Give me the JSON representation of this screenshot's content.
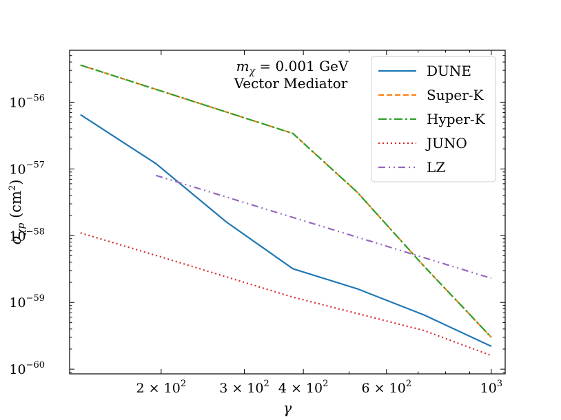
{
  "chart_data": {
    "type": "line",
    "xscale": "log",
    "yscale": "log",
    "xlabel": "γ",
    "ylabel": "σ_χp (cm²)",
    "xlim": [
      128,
      1070
    ],
    "ylim": [
      8.5e-61,
      6e-56
    ],
    "legend_position": "top-right",
    "annotation": {
      "line1": "m_χ = 0.001 GeV",
      "line2": "Vector Mediator"
    },
    "x_ticks": [
      {
        "value": 200,
        "mantissa": "2 × 10",
        "exp": "2"
      },
      {
        "value": 300,
        "mantissa": "3 × 10",
        "exp": "2"
      },
      {
        "value": 400,
        "mantissa": "4 × 10",
        "exp": "2"
      },
      {
        "value": 600,
        "mantissa": "6 × 10",
        "exp": "2"
      },
      {
        "value": 1000,
        "mantissa": "10",
        "exp": "3"
      }
    ],
    "y_ticks": [
      {
        "value": 1e-60,
        "mantissa": "10",
        "exp": "−60"
      },
      {
        "value": 1e-59,
        "mantissa": "10",
        "exp": "−59"
      },
      {
        "value": 1e-58,
        "mantissa": "10",
        "exp": "−58"
      },
      {
        "value": 1e-57,
        "mantissa": "10",
        "exp": "−57"
      },
      {
        "value": 1e-56,
        "mantissa": "10",
        "exp": "−56"
      }
    ],
    "series": [
      {
        "name": "DUNE",
        "color": "#1f77b4",
        "dash": "solid",
        "x": [
          135,
          195,
          275,
          380,
          520,
          720,
          1000
        ],
        "y": [
          6.5e-57,
          1.2e-57,
          1.6e-58,
          3.2e-59,
          1.6e-59,
          6.5e-60,
          2.2e-60
        ]
      },
      {
        "name": "Super-K",
        "color": "#ff7f0e",
        "dash": "dashed",
        "x": [
          135,
          380,
          520,
          720,
          1000
        ],
        "y": [
          3.6e-56,
          3.4e-57,
          4.5e-58,
          3.5e-59,
          3e-60
        ]
      },
      {
        "name": "Hyper-K",
        "color": "#2ca02c",
        "dash": "dashdot",
        "x": [
          135,
          380,
          520,
          720,
          1000
        ],
        "y": [
          3.6e-56,
          3.4e-57,
          4.5e-58,
          3.5e-59,
          3e-60
        ]
      },
      {
        "name": "JUNO",
        "color": "#d62728",
        "dash": "dotted",
        "x": [
          135,
          200,
          380,
          720,
          1000
        ],
        "y": [
          1.1e-58,
          4.8e-59,
          1.2e-59,
          3.8e-60,
          1.6e-60
        ]
      },
      {
        "name": "LZ",
        "color": "#9467bd",
        "dash": "dashdotdot",
        "x": [
          195,
          1000
        ],
        "y": [
          8e-58,
          2.3e-59
        ]
      }
    ]
  }
}
